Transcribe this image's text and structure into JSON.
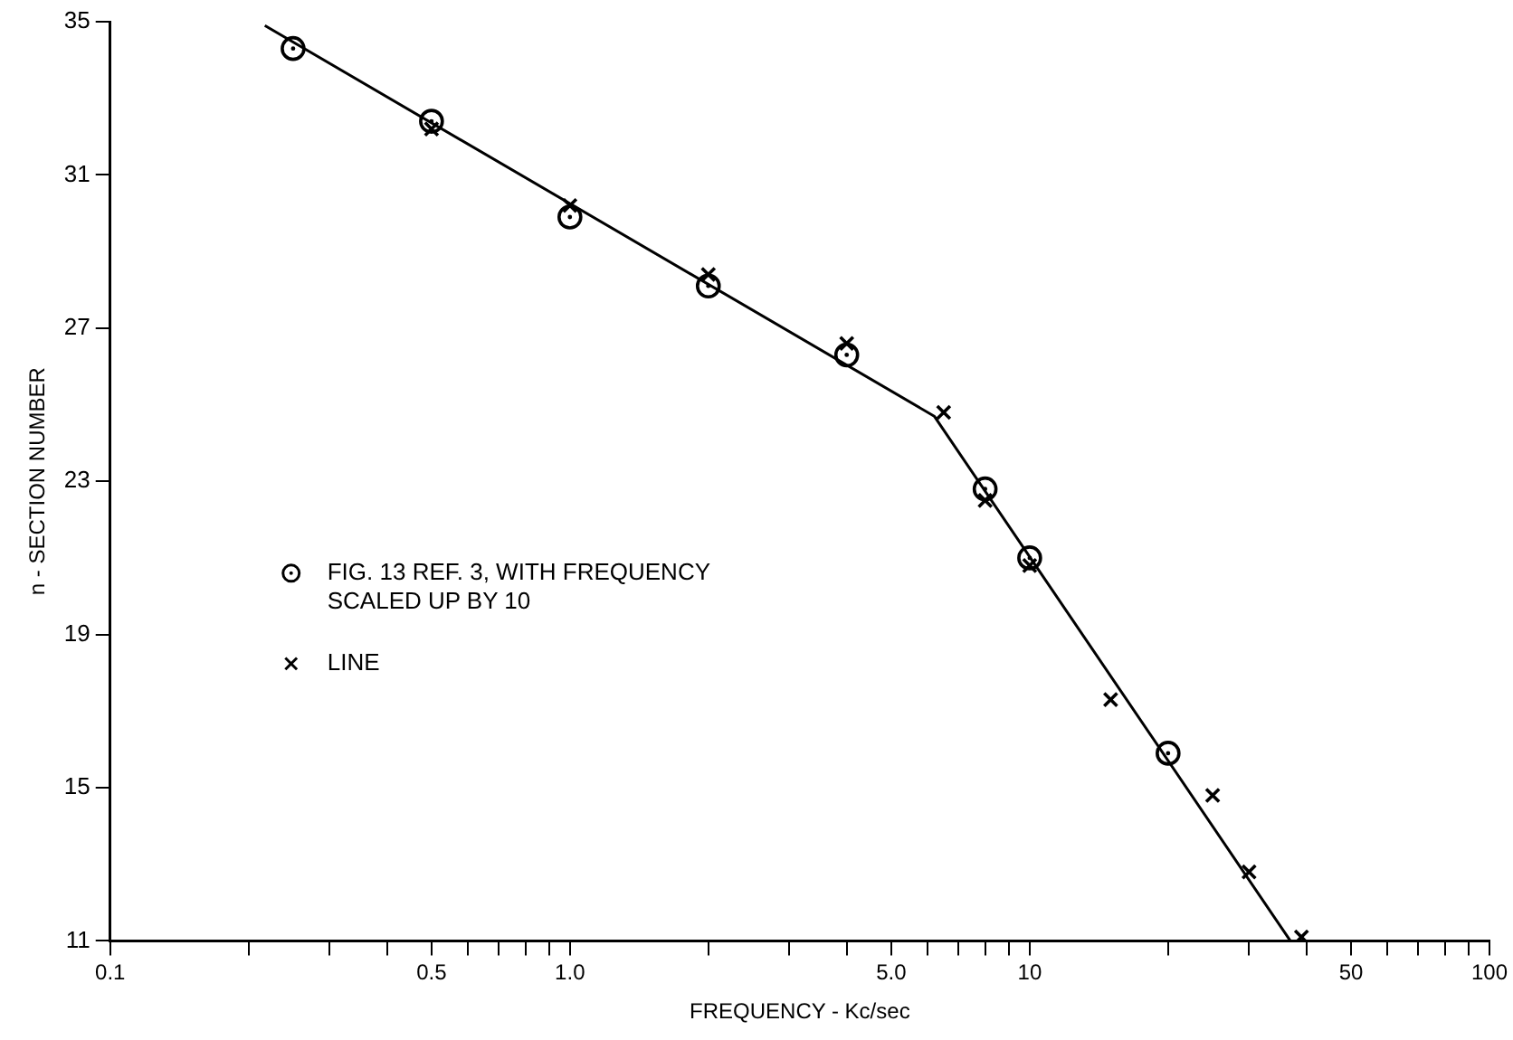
{
  "chart_data": {
    "type": "scatter",
    "xlabel": "FREQUENCY - Kc/sec",
    "ylabel": "n - SECTION NUMBER",
    "log": "x",
    "grid": false,
    "legend": "left",
    "xlim": [
      0.1,
      100
    ],
    "xticks": [
      0.1,
      {
        "value": 0.2,
        "label": null
      },
      {
        "value": 0.3,
        "label": null
      },
      {
        "value": 0.4,
        "label": null
      },
      0.5,
      {
        "value": 0.6,
        "label": null
      },
      {
        "value": 0.7,
        "label": null
      },
      {
        "value": 0.8,
        "label": null
      },
      {
        "value": 0.9,
        "label": null
      },
      {
        "value": 1,
        "label": "1.0"
      },
      {
        "value": 2,
        "label": null
      },
      {
        "value": 3,
        "label": null
      },
      {
        "value": 4,
        "label": null
      },
      {
        "value": 5,
        "label": "5.0"
      },
      {
        "value": 6,
        "label": null
      },
      {
        "value": 7,
        "label": null
      },
      {
        "value": 8,
        "label": null
      },
      {
        "value": 9,
        "label": null
      },
      10,
      {
        "value": 20,
        "label": null
      },
      {
        "value": 30,
        "label": null
      },
      {
        "value": 40,
        "label": null
      },
      50,
      {
        "value": 60,
        "label": null
      },
      {
        "value": 70,
        "label": null
      },
      {
        "value": 80,
        "label": null
      },
      {
        "value": 90,
        "label": null
      },
      100
    ],
    "ylim": [
      11,
      35
    ],
    "yticks": [
      11,
      15,
      19,
      23,
      27,
      31,
      35
    ],
    "series": [
      {
        "name": "FIG. 13 REF. 3, WITH FREQUENCY SCALED UP BY 10",
        "color": "#000000",
        "marker": "circle",
        "x": [
          0.25,
          0.5,
          1,
          2,
          4,
          8,
          10,
          20
        ],
        "values": [
          34.3,
          32.4,
          29.9,
          28.1,
          26.3,
          22.8,
          21.0,
          15.9
        ]
      },
      {
        "name": "LINE",
        "color": "#000000",
        "marker": "cross",
        "x": [
          0.5,
          1,
          2,
          4,
          6.5,
          8,
          10,
          15,
          25,
          30,
          39
        ],
        "values": [
          32.2,
          30.2,
          28.4,
          26.6,
          24.8,
          22.5,
          20.8,
          17.3,
          14.8,
          12.8,
          11.1
        ]
      },
      {
        "type": "line",
        "color": "#000000",
        "marker": "none",
        "line_style": "solid",
        "x": [
          0.217,
          6.2,
          36.9
        ],
        "values": [
          34.9,
          24.7,
          11
        ]
      }
    ]
  }
}
